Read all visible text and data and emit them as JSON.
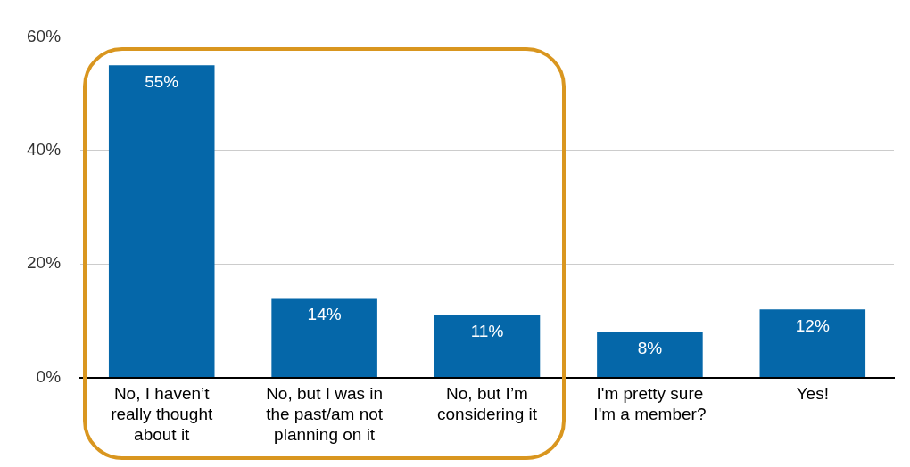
{
  "chart_data": {
    "type": "bar",
    "categories": [
      "No, I haven’t really thought about it",
      "No, but I was in the past/am not planning on it",
      "No, but I’m considering it",
      "I'm pretty sure I'm a member?",
      "Yes!"
    ],
    "values": [
      55,
      14,
      11,
      8,
      12
    ],
    "value_labels": [
      "55%",
      "14%",
      "11%",
      "8%",
      "12%"
    ],
    "color": "#0567a9",
    "ylim": [
      0,
      60
    ],
    "yticks": [
      {
        "value": 0,
        "label": "0%"
      },
      {
        "value": 20,
        "label": "20%"
      },
      {
        "value": 40,
        "label": "40%"
      },
      {
        "value": 60,
        "label": "60%"
      }
    ],
    "grid": "y"
  }
}
